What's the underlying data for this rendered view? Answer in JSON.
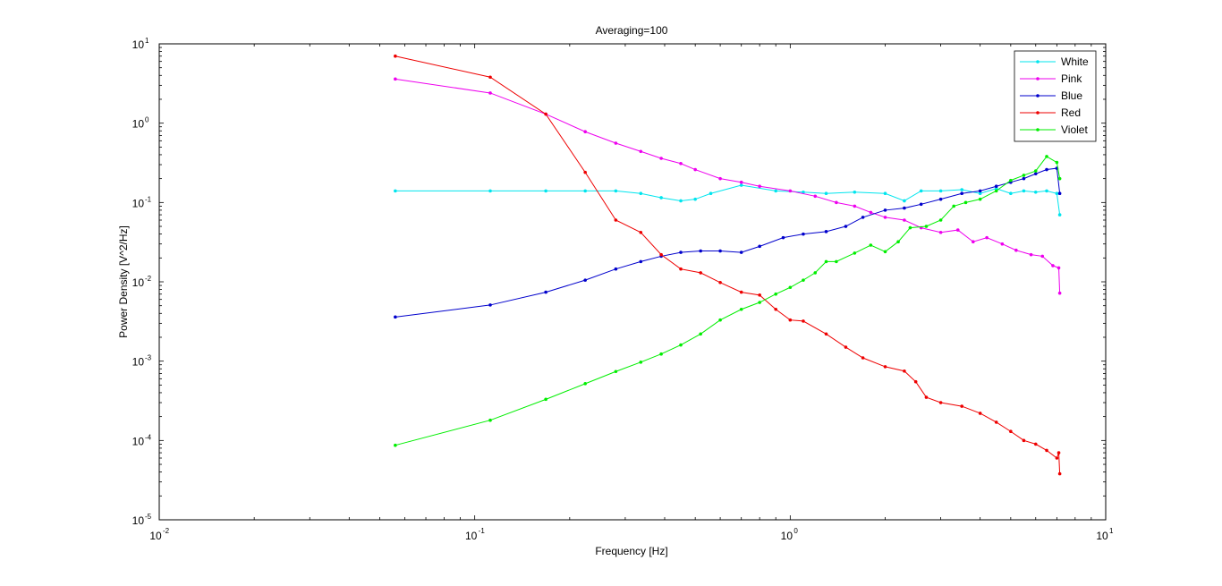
{
  "chart_data": {
    "type": "line",
    "title": "Averaging=100",
    "xlabel": "Frequency [Hz]",
    "ylabel": "Power Density [V^2/Hz]",
    "xscale": "log",
    "yscale": "log",
    "xlim": [
      0.01,
      10
    ],
    "ylim": [
      1e-05,
      10
    ],
    "grid": false,
    "legend_position": "top-right",
    "x_ticks": [
      {
        "value": 0.01,
        "base": "10",
        "exp": "-2"
      },
      {
        "value": 0.1,
        "base": "10",
        "exp": "-1"
      },
      {
        "value": 1,
        "base": "10",
        "exp": "0"
      },
      {
        "value": 10,
        "base": "10",
        "exp": "1"
      }
    ],
    "y_ticks": [
      {
        "value": 1e-05,
        "base": "10",
        "exp": "-5"
      },
      {
        "value": 0.0001,
        "base": "10",
        "exp": "-4"
      },
      {
        "value": 0.001,
        "base": "10",
        "exp": "-3"
      },
      {
        "value": 0.01,
        "base": "10",
        "exp": "-2"
      },
      {
        "value": 0.1,
        "base": "10",
        "exp": "-1"
      },
      {
        "value": 1,
        "base": "10",
        "exp": "0"
      },
      {
        "value": 10,
        "base": "10",
        "exp": "1"
      }
    ],
    "series": [
      {
        "name": "White",
        "color": "#00e5ee",
        "points": [
          [
            0.056,
            0.14
          ],
          [
            0.112,
            0.14
          ],
          [
            0.168,
            0.14
          ],
          [
            0.224,
            0.14
          ],
          [
            0.28,
            0.14
          ],
          [
            0.336,
            0.13
          ],
          [
            0.39,
            0.115
          ],
          [
            0.45,
            0.105
          ],
          [
            0.5,
            0.11
          ],
          [
            0.56,
            0.13
          ],
          [
            0.7,
            0.165
          ],
          [
            0.9,
            0.14
          ],
          [
            1.1,
            0.135
          ],
          [
            1.3,
            0.13
          ],
          [
            1.6,
            0.135
          ],
          [
            2.0,
            0.13
          ],
          [
            2.3,
            0.105
          ],
          [
            2.6,
            0.14
          ],
          [
            3.0,
            0.14
          ],
          [
            3.5,
            0.145
          ],
          [
            4.0,
            0.13
          ],
          [
            4.5,
            0.15
          ],
          [
            5.0,
            0.13
          ],
          [
            5.5,
            0.14
          ],
          [
            6.0,
            0.135
          ],
          [
            6.5,
            0.14
          ],
          [
            7.0,
            0.13
          ],
          [
            7.15,
            0.07
          ]
        ]
      },
      {
        "name": "Pink",
        "color": "#ee00ee",
        "points": [
          [
            0.056,
            3.6
          ],
          [
            0.112,
            2.4
          ],
          [
            0.168,
            1.3
          ],
          [
            0.224,
            0.78
          ],
          [
            0.28,
            0.56
          ],
          [
            0.336,
            0.44
          ],
          [
            0.39,
            0.36
          ],
          [
            0.45,
            0.31
          ],
          [
            0.5,
            0.26
          ],
          [
            0.6,
            0.2
          ],
          [
            0.7,
            0.18
          ],
          [
            0.8,
            0.16
          ],
          [
            1.0,
            0.14
          ],
          [
            1.2,
            0.12
          ],
          [
            1.4,
            0.1
          ],
          [
            1.6,
            0.09
          ],
          [
            1.8,
            0.075
          ],
          [
            2.0,
            0.065
          ],
          [
            2.3,
            0.06
          ],
          [
            2.6,
            0.048
          ],
          [
            3.0,
            0.042
          ],
          [
            3.4,
            0.045
          ],
          [
            3.8,
            0.032
          ],
          [
            4.2,
            0.036
          ],
          [
            4.7,
            0.03
          ],
          [
            5.2,
            0.025
          ],
          [
            5.8,
            0.022
          ],
          [
            6.3,
            0.021
          ],
          [
            6.8,
            0.016
          ],
          [
            7.1,
            0.015
          ],
          [
            7.15,
            0.0072
          ]
        ]
      },
      {
        "name": "Blue",
        "color": "#0000cc",
        "points": [
          [
            0.056,
            0.0036
          ],
          [
            0.112,
            0.0051
          ],
          [
            0.168,
            0.0074
          ],
          [
            0.224,
            0.0105
          ],
          [
            0.28,
            0.0145
          ],
          [
            0.336,
            0.018
          ],
          [
            0.39,
            0.021
          ],
          [
            0.45,
            0.0235
          ],
          [
            0.52,
            0.0245
          ],
          [
            0.6,
            0.0245
          ],
          [
            0.7,
            0.0235
          ],
          [
            0.8,
            0.028
          ],
          [
            0.95,
            0.036
          ],
          [
            1.1,
            0.04
          ],
          [
            1.3,
            0.043
          ],
          [
            1.5,
            0.05
          ],
          [
            1.7,
            0.065
          ],
          [
            2.0,
            0.08
          ],
          [
            2.3,
            0.085
          ],
          [
            2.6,
            0.095
          ],
          [
            3.0,
            0.11
          ],
          [
            3.5,
            0.13
          ],
          [
            4.0,
            0.14
          ],
          [
            4.5,
            0.16
          ],
          [
            5.0,
            0.18
          ],
          [
            5.5,
            0.2
          ],
          [
            6.0,
            0.23
          ],
          [
            6.5,
            0.26
          ],
          [
            7.0,
            0.27
          ],
          [
            7.15,
            0.13
          ]
        ]
      },
      {
        "name": "Red",
        "color": "#ee0000",
        "points": [
          [
            0.056,
            7.0
          ],
          [
            0.112,
            3.8
          ],
          [
            0.168,
            1.3
          ],
          [
            0.224,
            0.24
          ],
          [
            0.28,
            0.06
          ],
          [
            0.336,
            0.042
          ],
          [
            0.39,
            0.022
          ],
          [
            0.45,
            0.0145
          ],
          [
            0.52,
            0.013
          ],
          [
            0.6,
            0.0098
          ],
          [
            0.7,
            0.0074
          ],
          [
            0.8,
            0.0068
          ],
          [
            0.9,
            0.0045
          ],
          [
            1.0,
            0.0033
          ],
          [
            1.1,
            0.0032
          ],
          [
            1.3,
            0.0022
          ],
          [
            1.5,
            0.0015
          ],
          [
            1.7,
            0.0011
          ],
          [
            2.0,
            0.00085
          ],
          [
            2.3,
            0.00075
          ],
          [
            2.5,
            0.00055
          ],
          [
            2.7,
            0.00035
          ],
          [
            3.0,
            0.0003
          ],
          [
            3.5,
            0.00027
          ],
          [
            4.0,
            0.00022
          ],
          [
            4.5,
            0.00017
          ],
          [
            5.0,
            0.00013
          ],
          [
            5.5,
            0.0001
          ],
          [
            6.0,
            9e-05
          ],
          [
            6.5,
            7.5e-05
          ],
          [
            7.0,
            6e-05
          ],
          [
            7.1,
            7e-05
          ],
          [
            7.15,
            3.8e-05
          ]
        ]
      },
      {
        "name": "Violet",
        "color": "#00ee00",
        "points": [
          [
            0.056,
            8.7e-05
          ],
          [
            0.112,
            0.00018
          ],
          [
            0.168,
            0.00033
          ],
          [
            0.224,
            0.00052
          ],
          [
            0.28,
            0.00074
          ],
          [
            0.336,
            0.00097
          ],
          [
            0.39,
            0.00123
          ],
          [
            0.45,
            0.0016
          ],
          [
            0.52,
            0.0022
          ],
          [
            0.6,
            0.0033
          ],
          [
            0.7,
            0.0045
          ],
          [
            0.8,
            0.0055
          ],
          [
            0.9,
            0.007
          ],
          [
            1.0,
            0.0085
          ],
          [
            1.1,
            0.0105
          ],
          [
            1.2,
            0.013
          ],
          [
            1.3,
            0.018
          ],
          [
            1.4,
            0.018
          ],
          [
            1.6,
            0.023
          ],
          [
            1.8,
            0.029
          ],
          [
            2.0,
            0.024
          ],
          [
            2.2,
            0.032
          ],
          [
            2.4,
            0.048
          ],
          [
            2.7,
            0.05
          ],
          [
            3.0,
            0.06
          ],
          [
            3.3,
            0.09
          ],
          [
            3.6,
            0.1
          ],
          [
            4.0,
            0.11
          ],
          [
            4.5,
            0.14
          ],
          [
            5.0,
            0.19
          ],
          [
            5.5,
            0.22
          ],
          [
            6.0,
            0.25
          ],
          [
            6.5,
            0.38
          ],
          [
            7.0,
            0.32
          ],
          [
            7.15,
            0.2
          ]
        ]
      }
    ]
  }
}
